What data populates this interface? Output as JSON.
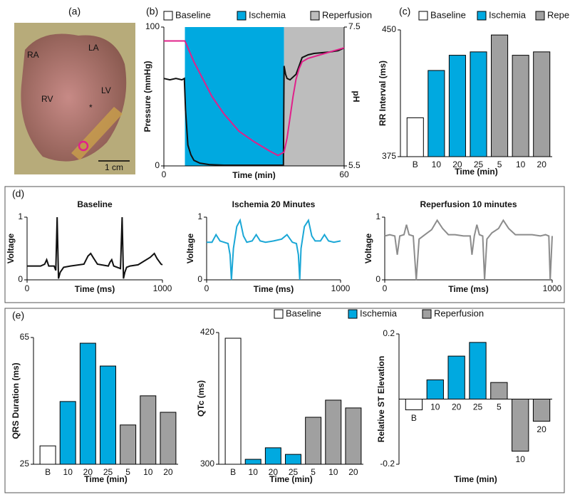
{
  "panel_labels": [
    "(a)",
    "(b)",
    "(c)",
    "(d)",
    "(e)"
  ],
  "photo": {
    "labels": [
      "RA",
      "LA",
      "RV",
      "LV"
    ],
    "scale_label": "1 cm"
  },
  "chart_data": [
    {
      "type": "line",
      "xlabel": "Time (min)",
      "ylabel": "Pressure (mmHg)",
      "y2label": "pH",
      "xlim": [
        0,
        60
      ],
      "xticks": [
        0,
        60
      ],
      "ylim": [
        0,
        100
      ],
      "yticks": [
        0,
        100
      ],
      "y2lim": [
        5.5,
        7.5
      ],
      "y2ticks": [
        7.5,
        5.5
      ],
      "regions": [
        {
          "name": "Baseline",
          "color": "#ffffff",
          "x": [
            0,
            7
          ]
        },
        {
          "name": "Ischemia",
          "color": "#00a9e0",
          "x": [
            7,
            40
          ]
        },
        {
          "name": "Reperfusion",
          "color": "#bdbdbd",
          "x": [
            40,
            60
          ]
        }
      ],
      "series": [
        {
          "color": "#111111",
          "x": [
            0,
            2,
            4,
            6,
            6.8,
            7.2,
            8,
            9,
            10,
            12,
            15,
            20,
            30,
            39.8,
            40,
            40.5,
            41,
            42,
            44,
            45,
            46,
            48,
            50,
            55,
            58,
            60
          ],
          "values": [
            63,
            62,
            63,
            62,
            63,
            40,
            15,
            8,
            4,
            2,
            1,
            0.5,
            0.5,
            0.5,
            72,
            66,
            63,
            62,
            66,
            72,
            78,
            80,
            81,
            82,
            83,
            85
          ]
        },
        {
          "color": "#e0218a",
          "axis": "y2",
          "x": [
            0,
            4,
            7,
            8,
            10,
            13,
            16,
            20,
            25,
            30,
            35,
            38,
            40,
            41,
            42,
            43,
            44,
            45,
            46,
            48,
            52,
            56,
            60
          ],
          "values": [
            7.3,
            7.3,
            7.3,
            7.2,
            7.0,
            6.75,
            6.5,
            6.25,
            6.0,
            5.85,
            5.72,
            5.65,
            5.7,
            5.9,
            6.2,
            6.5,
            6.75,
            6.9,
            7.0,
            7.05,
            7.1,
            7.15,
            7.2
          ]
        }
      ]
    },
    {
      "type": "bar",
      "xlabel": "Time (min)",
      "ylabel": "RR Interval (ms)",
      "categories": [
        "B",
        "10",
        "20",
        "25",
        "5",
        "10",
        "20"
      ],
      "values": [
        398,
        426,
        435,
        437,
        447,
        435,
        437
      ],
      "colors": [
        "#ffffff",
        "#00a9e0",
        "#00a9e0",
        "#00a9e0",
        "#a0a0a0",
        "#a0a0a0",
        "#a0a0a0"
      ],
      "ylim": [
        375,
        450
      ],
      "yticks": [
        375,
        450
      ],
      "legend": [
        {
          "name": "Baseline",
          "color": "#ffffff"
        },
        {
          "name": "Ischemia",
          "color": "#00a9e0"
        },
        {
          "name": "Reperfusion",
          "color": "#a0a0a0"
        }
      ]
    },
    {
      "type": "line",
      "title": "Baseline",
      "xlabel": "Time (ms)",
      "ylabel": "Voltage",
      "xlim": [
        0,
        1000
      ],
      "xticks": [
        0,
        1000
      ],
      "ylim": [
        0,
        1
      ],
      "yticks": [
        0,
        1
      ],
      "series": [
        {
          "color": "#111111",
          "x": [
            0,
            100,
            130,
            145,
            160,
            200,
            212,
            222,
            232,
            245,
            270,
            320,
            420,
            450,
            470,
            490,
            520,
            600,
            612,
            625,
            640,
            690,
            702,
            712,
            722,
            735,
            760,
            820,
            910,
            940,
            960,
            990,
            1000
          ],
          "values": [
            0.22,
            0.22,
            0.25,
            0.32,
            0.22,
            0.22,
            0.15,
            1.0,
            0.02,
            0.12,
            0.2,
            0.22,
            0.25,
            0.38,
            0.42,
            0.35,
            0.25,
            0.22,
            0.28,
            0.32,
            0.22,
            0.18,
            1.0,
            0.02,
            0.12,
            0.2,
            0.22,
            0.24,
            0.36,
            0.42,
            0.34,
            0.25,
            0.24
          ]
        }
      ]
    },
    {
      "type": "line",
      "title": "Ischemia 20 Minutes",
      "xlabel": "Time (ms)",
      "ylabel": "Voltage",
      "xlim": [
        0,
        1000
      ],
      "xticks": [
        0,
        1000
      ],
      "ylim": [
        0,
        1
      ],
      "yticks": [
        0,
        1
      ],
      "series": [
        {
          "color": "#1aa7d6",
          "x": [
            0,
            40,
            70,
            100,
            130,
            160,
            175,
            185,
            200,
            225,
            250,
            275,
            300,
            340,
            370,
            400,
            440,
            500,
            560,
            600,
            640,
            670,
            685,
            695,
            705,
            730,
            760,
            785,
            810,
            850,
            880,
            910,
            950,
            1000
          ],
          "values": [
            0.6,
            0.6,
            0.72,
            0.62,
            0.6,
            0.58,
            0.4,
            0.0,
            0.5,
            0.85,
            0.95,
            0.7,
            0.6,
            0.62,
            0.72,
            0.62,
            0.6,
            0.62,
            0.65,
            0.72,
            0.6,
            0.58,
            0.4,
            0.0,
            0.5,
            0.85,
            0.95,
            0.7,
            0.62,
            0.62,
            0.72,
            0.62,
            0.6,
            0.62
          ]
        }
      ]
    },
    {
      "type": "line",
      "title": "Reperfusion 10 minutes",
      "xlabel": "Time (ms)",
      "ylabel": "Voltage",
      "xlim": [
        0,
        1000
      ],
      "xticks": [
        0,
        1000
      ],
      "ylim": [
        0,
        1
      ],
      "yticks": [
        0,
        1
      ],
      "series": [
        {
          "color": "#8c8c8c",
          "x": [
            0,
            30,
            60,
            75,
            90,
            115,
            130,
            145,
            170,
            188,
            205,
            240,
            280,
            313,
            345,
            380,
            420,
            470,
            510,
            521,
            535,
            550,
            565,
            585,
            596,
            610,
            640,
            680,
            708,
            740,
            780,
            830,
            880,
            930,
            960,
            980,
            988,
            1000
          ],
          "values": [
            0.7,
            0.72,
            0.7,
            0.4,
            0.7,
            0.72,
            0.88,
            0.72,
            0.7,
            0.0,
            0.65,
            0.72,
            0.8,
            0.95,
            0.82,
            0.72,
            0.72,
            0.7,
            0.7,
            0.4,
            0.7,
            0.88,
            0.72,
            0.7,
            0.0,
            0.65,
            0.75,
            0.82,
            0.95,
            0.82,
            0.72,
            0.72,
            0.72,
            0.7,
            0.72,
            0.7,
            0.0,
            0.7
          ]
        }
      ]
    },
    {
      "type": "bar",
      "xlabel": "Time (min)",
      "ylabel": "QRS Duration (ms)",
      "categories": [
        "B",
        "10",
        "20",
        "25",
        "5",
        "10",
        "20"
      ],
      "values": [
        30.8,
        44.8,
        63.2,
        56,
        37.4,
        46.6,
        41.4
      ],
      "colors": [
        "#ffffff",
        "#00a9e0",
        "#00a9e0",
        "#00a9e0",
        "#a0a0a0",
        "#a0a0a0",
        "#a0a0a0"
      ],
      "ylim": [
        25,
        65
      ],
      "yticks": [
        25,
        65
      ]
    },
    {
      "type": "bar",
      "xlabel": "Time (min)",
      "ylabel": "QTc (ms)",
      "categories": [
        "B",
        "10",
        "20",
        "25",
        "5",
        "10",
        "20"
      ],
      "values": [
        414.8,
        304.5,
        315,
        309,
        342.8,
        358.4,
        351.3
      ],
      "colors": [
        "#ffffff",
        "#00a9e0",
        "#00a9e0",
        "#00a9e0",
        "#a0a0a0",
        "#a0a0a0",
        "#a0a0a0"
      ],
      "ylim": [
        300,
        420
      ],
      "yticks": [
        300,
        420
      ],
      "legend": [
        {
          "name": "Baseline",
          "color": "#ffffff"
        },
        {
          "name": "Ischemia",
          "color": "#00a9e0"
        },
        {
          "name": "Reperfusion",
          "color": "#a0a0a0"
        }
      ]
    },
    {
      "type": "bar",
      "xlabel": "Time (min)",
      "ylabel": "Relative ST Elevation",
      "categories": [
        "B",
        "10",
        "20",
        "25",
        "5",
        "10",
        "20"
      ],
      "values": [
        -0.033,
        0.059,
        0.132,
        0.174,
        0.051,
        -0.16,
        -0.068
      ],
      "colors": [
        "#ffffff",
        "#00a9e0",
        "#00a9e0",
        "#00a9e0",
        "#a0a0a0",
        "#a0a0a0",
        "#a0a0a0"
      ],
      "ylim": [
        -0.2,
        0.2
      ],
      "yticks": [
        -0.2,
        0.2
      ]
    }
  ]
}
